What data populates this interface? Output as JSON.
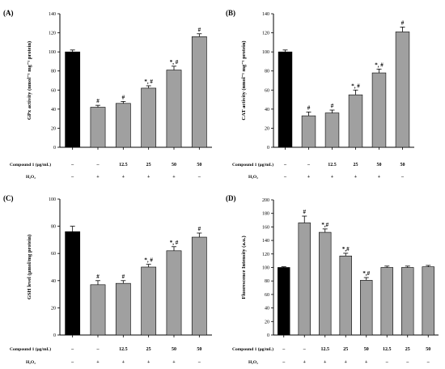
{
  "colors": {
    "control_bar": "#000000",
    "treated_bar": "#a0a0a0",
    "axis": "#000000"
  },
  "chart_data": [
    {
      "type": "bar",
      "panel": "(A)",
      "ylabel": "GPx activity (nmol⁻¹ mg⁻¹ protein)",
      "ylim": [
        0,
        140
      ],
      "yticks": [
        "0",
        "20",
        "40",
        "60",
        "80",
        "100",
        "120",
        "140"
      ],
      "values": [
        100,
        42,
        46,
        62,
        81,
        116
      ],
      "errors": [
        2,
        2,
        2,
        2.5,
        4,
        3
      ],
      "annotations": [
        "",
        "#",
        "#",
        "*, #",
        "*, #",
        "#"
      ],
      "conditions": {
        "row1_label": "Compound 1 (μg/mL)",
        "row1": [
          "–",
          "–",
          "12.5",
          "25",
          "50",
          "50"
        ],
        "row2_label": "H₂O₂",
        "row2": [
          "–",
          "+",
          "+",
          "+",
          "+",
          "–"
        ]
      }
    },
    {
      "type": "bar",
      "panel": "(B)",
      "ylabel": "CAT activity (nmol⁻¹ mg⁻¹ protein)",
      "ylim": [
        0,
        140
      ],
      "yticks": [
        "0",
        "20",
        "40",
        "60",
        "80",
        "100",
        "120",
        "140"
      ],
      "values": [
        100,
        33,
        36,
        55,
        78,
        121
      ],
      "errors": [
        2,
        4,
        3,
        5,
        4,
        5
      ],
      "annotations": [
        "",
        "#",
        "#",
        "*, #",
        "*, #",
        "#"
      ],
      "conditions": {
        "row1_label": "Compound 1 (μg/mL)",
        "row1": [
          "–",
          "–",
          "12.5",
          "25",
          "50",
          "50"
        ],
        "row2_label": "H₂O₂",
        "row2": [
          "–",
          "+",
          "+",
          "+",
          "+",
          "–"
        ]
      }
    },
    {
      "type": "bar",
      "panel": "(C)",
      "ylabel": "GSH level (μmol/mg protein)",
      "ylim": [
        0,
        100
      ],
      "yticks": [
        "0",
        "20",
        "40",
        "60",
        "80",
        "100"
      ],
      "values": [
        76,
        37,
        38,
        50,
        62,
        72
      ],
      "errors": [
        4,
        3,
        2,
        2,
        3,
        3
      ],
      "annotations": [
        "",
        "#",
        "#",
        "*, #",
        "*, #",
        "#"
      ],
      "conditions": {
        "row1_label": "Compound 1 (μg/mL)",
        "row1": [
          "–",
          "–",
          "12.5",
          "25",
          "50",
          "50"
        ],
        "row2_label": "H₂O₂",
        "row2": [
          "–",
          "+",
          "+",
          "+",
          "+",
          "–"
        ]
      }
    },
    {
      "type": "bar",
      "panel": "(D)",
      "ylabel": "Fluorescence Intensity (a.u.)",
      "ylim": [
        0,
        200
      ],
      "yticks": [
        "0",
        "20",
        "40",
        "60",
        "80",
        "100",
        "120",
        "140",
        "160",
        "180",
        "200"
      ],
      "values": [
        100,
        166,
        152,
        117,
        81,
        100,
        100,
        101
      ],
      "errors": [
        1,
        10,
        5,
        4,
        4,
        2,
        2,
        2
      ],
      "annotations": [
        "",
        "#",
        "*,#",
        "*,#",
        "*,#",
        "",
        "",
        ""
      ],
      "conditions": {
        "row1_label": "Compound 1 (μg/mL)",
        "row1": [
          "–",
          "–",
          "12.5",
          "25",
          "50",
          "12.5",
          "25",
          "50"
        ],
        "row2_label": "H₂O₂",
        "row2": [
          "–",
          "+",
          "+",
          "+",
          "+",
          "–",
          "–",
          "–"
        ]
      }
    }
  ]
}
